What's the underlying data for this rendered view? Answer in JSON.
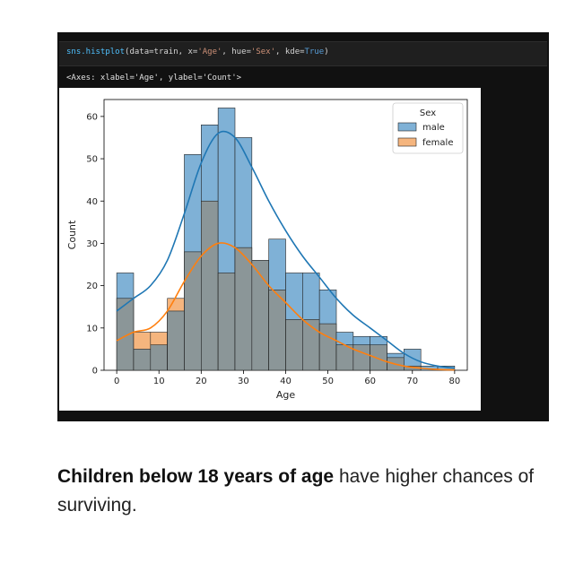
{
  "code": {
    "fn": "sns.histplot",
    "args_prefix": "(data=train, x=",
    "x_arg": "'Age'",
    "hue_prefix": ", hue=",
    "hue_arg": "'Sex'",
    "kde_prefix": ", kde=",
    "kde_arg": "True",
    "close": ")"
  },
  "output_text": "<Axes: xlabel='Age', ylabel='Count'>",
  "caption": {
    "bold": "Children below 18 years of age",
    "rest": " have higher chances of surviving."
  },
  "colors": {
    "male_fill": "#7fb1d6",
    "male_line": "#1f77b4",
    "female_fill": "#f5b57e",
    "female_line": "#ff7f0e",
    "overlap_fill": "#8b9698",
    "notebook_bg": "#111111"
  },
  "chart_data": {
    "type": "histogram",
    "xlabel": "Age",
    "ylabel": "Count",
    "xlim": [
      -3,
      83
    ],
    "ylim": [
      0,
      64
    ],
    "xticks": [
      0,
      10,
      20,
      30,
      40,
      50,
      60,
      70,
      80
    ],
    "yticks": [
      0,
      10,
      20,
      30,
      40,
      50,
      60
    ],
    "legend": {
      "title": "Sex",
      "position": "top-right"
    },
    "bin_edges": [
      0,
      4,
      8,
      12,
      16,
      20,
      24,
      28,
      32,
      36,
      40,
      44,
      48,
      52,
      56,
      60,
      64,
      68,
      72,
      76,
      80
    ],
    "series": [
      {
        "name": "male",
        "counts": [
          23,
          5,
          6,
          14,
          51,
          58,
          62,
          55,
          26,
          31,
          23,
          23,
          19,
          9,
          8,
          8,
          4,
          5,
          1,
          1
        ],
        "kde": [
          [
            0,
            14
          ],
          [
            4,
            17
          ],
          [
            8,
            20
          ],
          [
            12,
            26
          ],
          [
            16,
            37
          ],
          [
            20,
            49
          ],
          [
            24,
            56
          ],
          [
            28,
            55
          ],
          [
            32,
            48
          ],
          [
            36,
            40
          ],
          [
            40,
            33
          ],
          [
            44,
            27
          ],
          [
            48,
            22
          ],
          [
            52,
            17
          ],
          [
            56,
            13
          ],
          [
            60,
            10
          ],
          [
            64,
            7
          ],
          [
            68,
            4
          ],
          [
            72,
            2
          ],
          [
            76,
            1
          ],
          [
            80,
            0.5
          ]
        ]
      },
      {
        "name": "female",
        "counts": [
          17,
          9,
          9,
          17,
          28,
          40,
          23,
          29,
          26,
          19,
          12,
          12,
          11,
          6,
          6,
          6,
          3,
          1,
          0,
          0
        ],
        "kde": [
          [
            0,
            7
          ],
          [
            4,
            9
          ],
          [
            8,
            10
          ],
          [
            12,
            14
          ],
          [
            16,
            21
          ],
          [
            20,
            27
          ],
          [
            24,
            30
          ],
          [
            28,
            29
          ],
          [
            32,
            25
          ],
          [
            36,
            20
          ],
          [
            40,
            16
          ],
          [
            44,
            12
          ],
          [
            48,
            9
          ],
          [
            52,
            7
          ],
          [
            56,
            5
          ],
          [
            60,
            3.5
          ],
          [
            64,
            2
          ],
          [
            68,
            1
          ],
          [
            72,
            0.5
          ],
          [
            76,
            0.2
          ],
          [
            80,
            0.1
          ]
        ]
      }
    ]
  }
}
